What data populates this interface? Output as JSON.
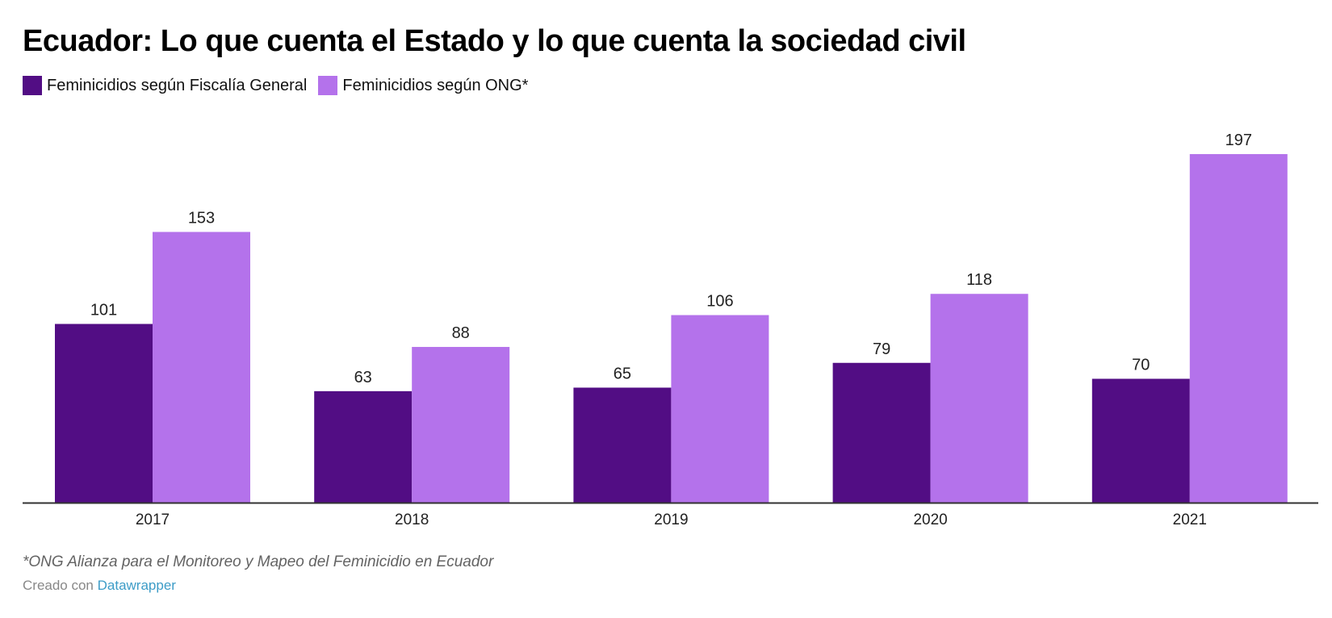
{
  "colors": {
    "fiscalia": "#520d84",
    "ong": "#b472eb",
    "axis": "#333333",
    "label": "#222222",
    "link": "#3d9cc7"
  },
  "credits": {
    "footnote": "*ONG Alianza para el Monitoreo y Mapeo del Feminicidio en Ecuador",
    "created_with": "Creado con",
    "tool_link": "Datawrapper"
  },
  "chart_data": {
    "type": "bar",
    "title": "Ecuador: Lo que cuenta el Estado y lo que cuenta la sociedad civil",
    "xlabel": "",
    "ylabel": "",
    "categories": [
      "2017",
      "2018",
      "2019",
      "2020",
      "2021"
    ],
    "series": [
      {
        "name": "Feminicidios según Fiscalía General",
        "color": "#520d84",
        "values": [
          101,
          63,
          65,
          79,
          70
        ]
      },
      {
        "name": "Feminicidios según ONG*",
        "color": "#b472eb",
        "values": [
          153,
          88,
          106,
          118,
          197
        ]
      }
    ],
    "ylim": [
      0,
      197
    ],
    "grid": false,
    "legend": "top-left",
    "data_labels": true
  }
}
